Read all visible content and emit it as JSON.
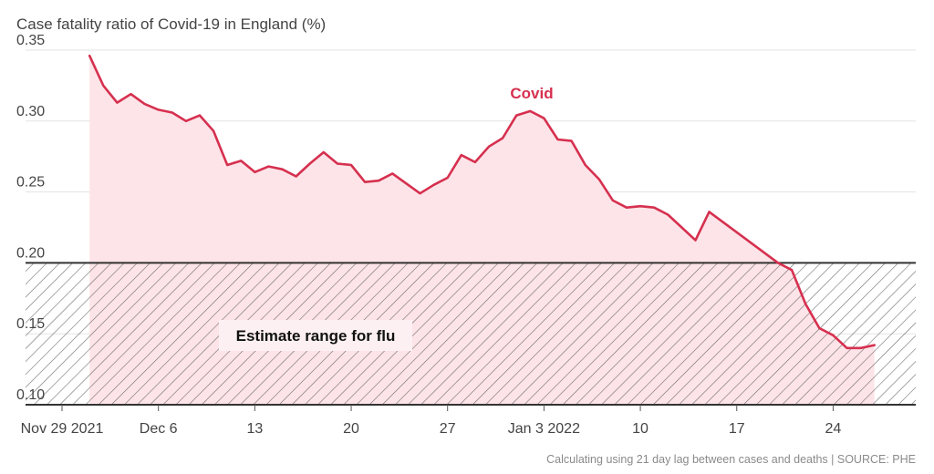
{
  "chart_data": {
    "type": "area",
    "title": "Case fatality ratio of Covid-19 in England (%)",
    "source": "Calculating using 21 day lag between cases and deaths | SOURCE: PHE",
    "ylim": [
      0.1,
      0.35
    ],
    "yticks": [
      0.1,
      0.15,
      0.2,
      0.25,
      0.3,
      0.35
    ],
    "ytick_labels": [
      "0.10",
      "0.15",
      "0.20",
      "0.25",
      "0.30",
      "0.35"
    ],
    "xlim": [
      "2021-11-29",
      "2022-01-30"
    ],
    "xticks": [
      {
        "date": "2021-11-29",
        "label": "Nov 29 2021"
      },
      {
        "date": "2021-12-06",
        "label": "Dec 6"
      },
      {
        "date": "2021-12-13",
        "label": "13"
      },
      {
        "date": "2021-12-20",
        "label": "20"
      },
      {
        "date": "2021-12-27",
        "label": "27"
      },
      {
        "date": "2022-01-03",
        "label": "Jan 3 2022"
      },
      {
        "date": "2022-01-10",
        "label": "10"
      },
      {
        "date": "2022-01-17",
        "label": "17"
      },
      {
        "date": "2022-01-24",
        "label": "24"
      }
    ],
    "grid": true,
    "band": {
      "label": "Estimate range for flu",
      "y_from": 0.1,
      "y_to": 0.2
    },
    "series": [
      {
        "name": "Covid",
        "color": "#d6304f",
        "fill": "#fde4e8",
        "x": [
          "2021-12-01",
          "2021-12-02",
          "2021-12-03",
          "2021-12-04",
          "2021-12-05",
          "2021-12-06",
          "2021-12-07",
          "2021-12-08",
          "2021-12-09",
          "2021-12-10",
          "2021-12-11",
          "2021-12-12",
          "2021-12-13",
          "2021-12-14",
          "2021-12-15",
          "2021-12-16",
          "2021-12-17",
          "2021-12-18",
          "2021-12-19",
          "2021-12-20",
          "2021-12-21",
          "2021-12-22",
          "2021-12-23",
          "2021-12-24",
          "2021-12-25",
          "2021-12-26",
          "2021-12-27",
          "2021-12-28",
          "2021-12-29",
          "2021-12-30",
          "2021-12-31",
          "2022-01-01",
          "2022-01-02",
          "2022-01-03",
          "2022-01-04",
          "2022-01-05",
          "2022-01-06",
          "2022-01-07",
          "2022-01-08",
          "2022-01-09",
          "2022-01-10",
          "2022-01-11",
          "2022-01-12",
          "2022-01-13",
          "2022-01-14",
          "2022-01-15",
          "2022-01-20",
          "2022-01-21",
          "2022-01-22",
          "2022-01-23",
          "2022-01-24",
          "2022-01-25",
          "2022-01-26",
          "2022-01-27"
        ],
        "y": [
          0.346,
          0.325,
          0.313,
          0.319,
          0.312,
          0.308,
          0.306,
          0.3,
          0.304,
          0.293,
          0.269,
          0.272,
          0.264,
          0.268,
          0.266,
          0.261,
          0.27,
          0.278,
          0.27,
          0.269,
          0.257,
          0.258,
          0.263,
          0.256,
          0.249,
          0.255,
          0.26,
          0.276,
          0.271,
          0.282,
          0.288,
          0.304,
          0.307,
          0.302,
          0.287,
          0.286,
          0.269,
          0.259,
          0.244,
          0.239,
          0.24,
          0.239,
          0.234,
          0.225,
          0.216,
          0.236,
          0.2,
          0.195,
          0.171,
          0.154,
          0.149,
          0.14,
          0.14,
          0.142
        ]
      }
    ]
  }
}
